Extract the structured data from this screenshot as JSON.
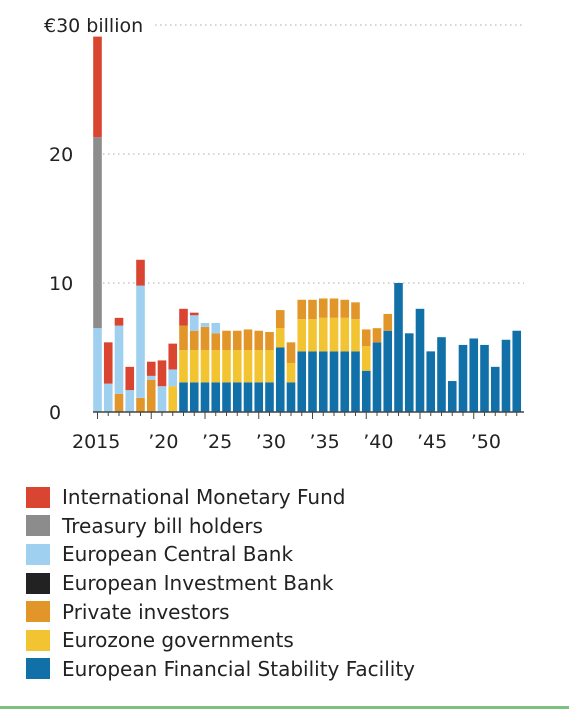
{
  "chart_data": {
    "type": "bar",
    "stacked": true,
    "title": "",
    "xlabel": "",
    "ylabel": "€30 billion",
    "ylim": [
      0,
      30
    ],
    "y_ticks": [
      {
        "value": 0,
        "label": "0"
      },
      {
        "value": 10,
        "label": "10"
      },
      {
        "value": 20,
        "label": "20"
      },
      {
        "value": 30,
        "label": "€30 billion"
      }
    ],
    "x_tick_labels": [
      {
        "year": 2015,
        "label": "2015"
      },
      {
        "year": 2020,
        "label": "’20"
      },
      {
        "year": 2025,
        "label": "’25"
      },
      {
        "year": 2030,
        "label": "’30"
      },
      {
        "year": 2035,
        "label": "’35"
      },
      {
        "year": 2040,
        "label": "’40"
      },
      {
        "year": 2045,
        "label": "’45"
      },
      {
        "year": 2050,
        "label": "’50"
      }
    ],
    "grid": "horizontal dotted",
    "legend_position": "bottom",
    "categories": [
      2015,
      2016,
      2017,
      2018,
      2019,
      2020,
      2021,
      2022,
      2023,
      2024,
      2025,
      2026,
      2027,
      2028,
      2029,
      2030,
      2031,
      2032,
      2033,
      2034,
      2035,
      2036,
      2037,
      2038,
      2039,
      2040,
      2041,
      2042,
      2043,
      2044,
      2045,
      2046,
      2047,
      2048,
      2049,
      2050,
      2051,
      2052,
      2053,
      2054
    ],
    "series": [
      {
        "name": "European Financial Stability Facility",
        "color": "#1270a8",
        "values": [
          0,
          0,
          0,
          0,
          0,
          0,
          0,
          0,
          2.3,
          2.3,
          2.3,
          2.3,
          2.3,
          2.3,
          2.3,
          2.3,
          2.3,
          5.0,
          2.3,
          4.7,
          4.7,
          4.7,
          4.7,
          4.7,
          4.7,
          3.2,
          5.4,
          6.3,
          10.0,
          6.1,
          8.0,
          4.7,
          5.8,
          2.4,
          5.2,
          5.7,
          5.2,
          3.5,
          5.6,
          6.3
        ]
      },
      {
        "name": "Eurozone governments",
        "color": "#f2c432",
        "values": [
          0,
          0,
          0,
          0,
          0,
          0,
          0,
          2.0,
          2.5,
          2.5,
          2.5,
          2.5,
          2.5,
          2.5,
          2.5,
          2.5,
          2.5,
          1.5,
          1.5,
          2.5,
          2.5,
          2.6,
          2.6,
          2.6,
          2.5,
          1.9,
          0,
          0,
          0,
          0,
          0,
          0,
          0,
          0,
          0,
          0,
          0,
          0,
          0,
          0
        ]
      },
      {
        "name": "Private investors",
        "color": "#e2962a",
        "values": [
          0,
          0,
          1.4,
          0,
          1.1,
          2.5,
          0,
          0,
          1.9,
          1.5,
          1.8,
          1.3,
          1.5,
          1.5,
          1.6,
          1.5,
          1.4,
          1.4,
          1.6,
          1.5,
          1.5,
          1.5,
          1.5,
          1.4,
          1.3,
          1.3,
          1.1,
          1.3,
          0,
          0,
          0,
          0,
          0,
          0,
          0,
          0,
          0,
          0,
          0,
          0
        ]
      },
      {
        "name": "European Investment Bank",
        "color": "#222222",
        "values": [
          0,
          0,
          0,
          0,
          0,
          0,
          0,
          0,
          0,
          0,
          0,
          0,
          0,
          0,
          0,
          0,
          0,
          0,
          0,
          0,
          0,
          0,
          0,
          0,
          0,
          0,
          0,
          0,
          0,
          0,
          0,
          0,
          0,
          0,
          0,
          0,
          0,
          0,
          0,
          0
        ]
      },
      {
        "name": "European Central Bank",
        "color": "#9fd0ef",
        "values": [
          6.5,
          2.2,
          5.3,
          1.7,
          8.7,
          0.3,
          2.0,
          1.3,
          0,
          1.2,
          0.3,
          0.8,
          0,
          0,
          0,
          0,
          0,
          0,
          0,
          0,
          0,
          0,
          0,
          0,
          0,
          0,
          0,
          0,
          0,
          0,
          0,
          0,
          0,
          0,
          0,
          0,
          0,
          0,
          0,
          0
        ]
      },
      {
        "name": "Treasury bill holders",
        "color": "#8c8c8c",
        "values": [
          14.8,
          0,
          0,
          0,
          0,
          0,
          0,
          0,
          0,
          0,
          0,
          0,
          0,
          0,
          0,
          0,
          0,
          0,
          0,
          0,
          0,
          0,
          0,
          0,
          0,
          0,
          0,
          0,
          0,
          0,
          0,
          0,
          0,
          0,
          0,
          0,
          0,
          0,
          0,
          0
        ]
      },
      {
        "name": "International Monetary Fund",
        "color": "#d94530",
        "values": [
          7.8,
          3.2,
          0.6,
          1.8,
          2.0,
          1.1,
          2.0,
          2.0,
          1.3,
          0.2,
          0,
          0,
          0,
          0,
          0,
          0,
          0,
          0,
          0,
          0,
          0,
          0,
          0,
          0,
          0,
          0,
          0,
          0,
          0,
          0,
          0,
          0,
          0,
          0,
          0,
          0,
          0,
          0,
          0,
          0
        ]
      }
    ]
  },
  "legend": [
    {
      "label": "International Monetary Fund",
      "color": "#d94530"
    },
    {
      "label": "Treasury bill holders",
      "color": "#8c8c8c"
    },
    {
      "label": "European Central Bank",
      "color": "#9fd0ef"
    },
    {
      "label": "European Investment Bank",
      "color": "#222222"
    },
    {
      "label": "Private investors",
      "color": "#e2962a"
    },
    {
      "label": "Eurozone governments",
      "color": "#f2c432"
    },
    {
      "label": "European Financial Stability Facility",
      "color": "#1270a8"
    }
  ]
}
